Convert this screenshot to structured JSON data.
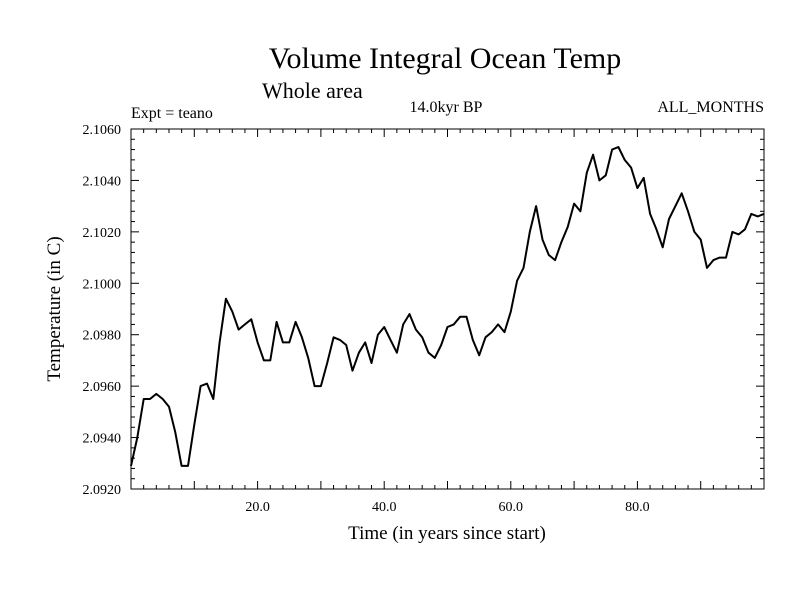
{
  "chart_data": {
    "type": "line",
    "title": "Volume Integral Ocean Temp",
    "subtitle": "Whole area",
    "label_left": "Expt = teano",
    "label_center": "14.0kyr BP",
    "label_right": "ALL_MONTHS",
    "xlabel": "Time (in years since start)",
    "ylabel": "Temperature (in C)",
    "xlim": [
      0,
      100
    ],
    "ylim": [
      2.092,
      2.106
    ],
    "xticks": [
      20,
      40,
      60,
      80
    ],
    "xtick_labels": [
      "20.0",
      "40.0",
      "60.0",
      "80.0"
    ],
    "yticks": [
      2.092,
      2.094,
      2.096,
      2.098,
      2.1,
      2.102,
      2.104,
      2.106
    ],
    "ytick_labels": [
      "2.0920",
      "2.0940",
      "2.0960",
      "2.0980",
      "2.1000",
      "2.1020",
      "2.1040",
      "2.1060"
    ],
    "grid": false,
    "series": [
      {
        "name": "Volume Integral Ocean Temp",
        "color": "#000000",
        "x": [
          0,
          1,
          2,
          3,
          4,
          5,
          6,
          7,
          8,
          9,
          10,
          11,
          12,
          13,
          14,
          15,
          16,
          17,
          18,
          19,
          20,
          21,
          22,
          23,
          24,
          25,
          26,
          27,
          28,
          29,
          30,
          31,
          32,
          33,
          34,
          35,
          36,
          37,
          38,
          39,
          40,
          41,
          42,
          43,
          44,
          45,
          46,
          47,
          48,
          49,
          50,
          51,
          52,
          53,
          54,
          55,
          56,
          57,
          58,
          59,
          60,
          61,
          62,
          63,
          64,
          65,
          66,
          67,
          68,
          69,
          70,
          71,
          72,
          73,
          74,
          75,
          76,
          77,
          78,
          79,
          80,
          81,
          82,
          83,
          84,
          85,
          86,
          87,
          88,
          89,
          90,
          91,
          92,
          93,
          94,
          95,
          96,
          97,
          98,
          99,
          100
        ],
        "values": [
          2.0929,
          2.094,
          2.0955,
          2.0955,
          2.0957,
          2.0955,
          2.0952,
          2.0942,
          2.0929,
          2.0929,
          2.0945,
          2.096,
          2.0961,
          2.0955,
          2.0977,
          2.0994,
          2.0989,
          2.0982,
          2.0984,
          2.0986,
          2.0977,
          2.097,
          2.097,
          2.0985,
          2.0977,
          2.0977,
          2.0985,
          2.0979,
          2.0971,
          2.096,
          2.096,
          2.0969,
          2.0979,
          2.0978,
          2.0976,
          2.0966,
          2.0973,
          2.0977,
          2.0969,
          2.098,
          2.0983,
          2.0978,
          2.0973,
          2.0984,
          2.0988,
          2.0982,
          2.0979,
          2.0973,
          2.0971,
          2.0976,
          2.0983,
          2.0984,
          2.0987,
          2.0987,
          2.0978,
          2.0972,
          2.0979,
          2.0981,
          2.0984,
          2.0981,
          2.0989,
          2.1001,
          2.1006,
          2.102,
          2.103,
          2.1017,
          2.1011,
          2.1009,
          2.1016,
          2.1022,
          2.1031,
          2.1028,
          2.1043,
          2.105,
          2.104,
          2.1042,
          2.1052,
          2.1053,
          2.1048,
          2.1045,
          2.1037,
          2.1041,
          2.1027,
          2.1021,
          2.1014,
          2.1025,
          2.103,
          2.1035,
          2.1028,
          2.102,
          2.1017,
          2.1006,
          2.1009,
          2.101,
          2.101,
          2.102,
          2.1019,
          2.1021,
          2.1027,
          2.1026,
          2.1027
        ]
      }
    ]
  }
}
